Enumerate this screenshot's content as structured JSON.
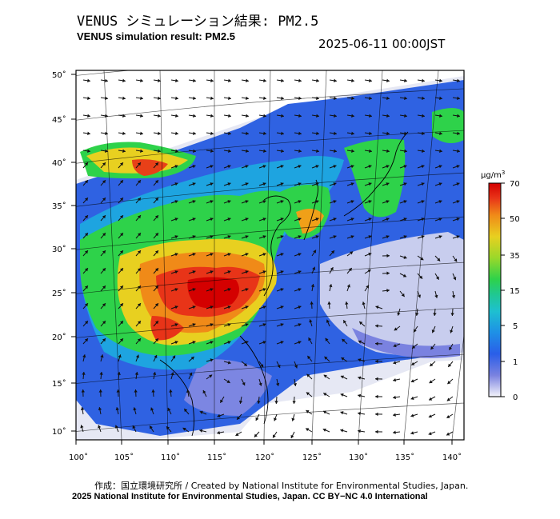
{
  "header": {
    "title_jp": "VENUS シミュレーション結果: PM2.5",
    "title_en": "VENUS simulation result: PM2.5",
    "timestamp": "2025-06-11 00:00JST"
  },
  "map": {
    "lat_ticks": [
      "50˚",
      "45˚",
      "40˚",
      "35˚",
      "30˚",
      "25˚",
      "20˚",
      "15˚",
      "10˚"
    ],
    "lon_ticks": [
      "100˚",
      "105˚",
      "110˚",
      "115˚",
      "120˚",
      "125˚",
      "130˚",
      "135˚",
      "140˚"
    ],
    "lat_range": [
      9,
      51
    ],
    "lon_range": [
      100,
      141
    ],
    "concentration_fields": [
      {
        "region": "central-china-hotspot",
        "level_ug_m3": 60
      },
      {
        "region": "sichuan-basin",
        "level_ug_m3": 45
      },
      {
        "region": "north-china-plain",
        "level_ug_m3": 25
      },
      {
        "region": "korea-east-china-sea",
        "level_ug_m3": 30
      },
      {
        "region": "inner-mongolia",
        "level_ug_m3": 45
      },
      {
        "region": "japan",
        "level_ug_m3": 15
      },
      {
        "region": "western-pacific",
        "level_ug_m3": 3
      },
      {
        "region": "south-china-sea",
        "level_ug_m3": 5
      }
    ]
  },
  "colorbar": {
    "unit": "μg/m",
    "unit_sup": "3",
    "ticks": [
      "70",
      "50",
      "35",
      "15",
      "5",
      "1",
      "0"
    ],
    "colors": [
      "#e8e8f4",
      "#7a82e0",
      "#2a6ee8",
      "#1ea0e0",
      "#20c8b0",
      "#2ed24a",
      "#9ad82a",
      "#e8d020",
      "#f08a18",
      "#e83418",
      "#d40000"
    ]
  },
  "footer": {
    "credit_line1": "作成：国立環境研究所 / Created by National Institute for Environmental Studies, Japan.",
    "credit_line2": "2025 National Institute for Environmental Studies, Japan. CC BY−NC 4.0 International"
  }
}
